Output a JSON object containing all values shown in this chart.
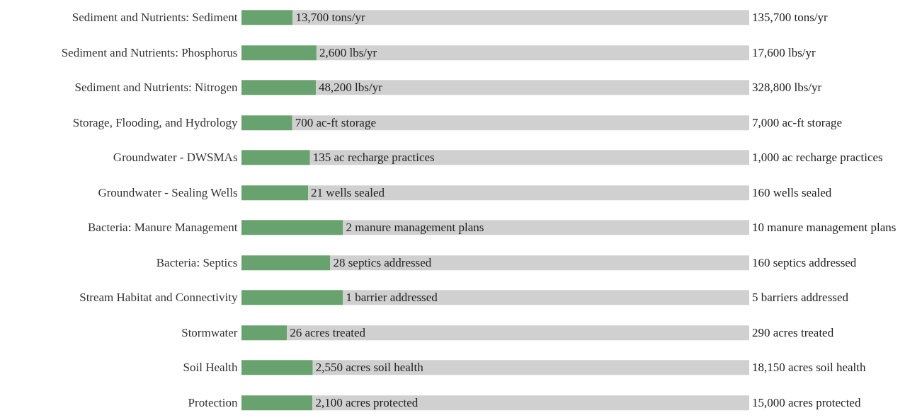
{
  "chart_data": [
    {
      "type": "bar",
      "orientation": "horizontal",
      "stacked": true,
      "tick_labels": "y",
      "categories": [
        "Sediment and Nutrients: Sediment"
      ],
      "xlim": [
        0,
        135700
      ],
      "totals": [
        "135,700 tons/yr"
      ],
      "series": [
        {
          "color": "#68a36f",
          "values": [
            13700
          ],
          "value_labels": [
            "13,700 tons/yr"
          ]
        },
        {
          "color": "#d0d0d0",
          "values": [
            122000
          ],
          "value_labels": [
            null
          ]
        }
      ]
    },
    {
      "type": "bar",
      "orientation": "horizontal",
      "stacked": true,
      "tick_labels": "y",
      "categories": [
        "Sediment and Nutrients: Phosphorus"
      ],
      "xlim": [
        0,
        17600
      ],
      "totals": [
        "17,600 lbs/yr"
      ],
      "series": [
        {
          "color": "#68a36f",
          "values": [
            2600
          ],
          "value_labels": [
            "2,600 lbs/yr"
          ]
        },
        {
          "color": "#d0d0d0",
          "values": [
            15000
          ],
          "value_labels": [
            null
          ]
        }
      ]
    },
    {
      "type": "bar",
      "orientation": "horizontal",
      "stacked": true,
      "tick_labels": "y",
      "categories": [
        "Sediment and Nutrients: Nitrogen"
      ],
      "xlim": [
        0,
        328800
      ],
      "totals": [
        "328,800 lbs/yr"
      ],
      "series": [
        {
          "color": "#68a36f",
          "values": [
            48200
          ],
          "value_labels": [
            "48,200 lbs/yr"
          ]
        },
        {
          "color": "#d0d0d0",
          "values": [
            280600
          ],
          "value_labels": [
            null
          ]
        }
      ]
    },
    {
      "type": "bar",
      "orientation": "horizontal",
      "stacked": true,
      "tick_labels": "y",
      "categories": [
        "Storage, Flooding, and Hydrology"
      ],
      "xlim": [
        0,
        7000
      ],
      "totals": [
        "7,000 ac-ft storage"
      ],
      "series": [
        {
          "color": "#68a36f",
          "values": [
            700
          ],
          "value_labels": [
            "700 ac-ft storage"
          ]
        },
        {
          "color": "#d0d0d0",
          "values": [
            6300
          ],
          "value_labels": [
            null
          ]
        }
      ]
    },
    {
      "type": "bar",
      "orientation": "horizontal",
      "stacked": true,
      "tick_labels": "y",
      "categories": [
        "Groundwater - DWSMAs"
      ],
      "xlim": [
        0,
        1000
      ],
      "totals": [
        "1,000 ac recharge practices"
      ],
      "series": [
        {
          "color": "#68a36f",
          "values": [
            135
          ],
          "value_labels": [
            "135 ac recharge practices"
          ]
        },
        {
          "color": "#d0d0d0",
          "values": [
            865
          ],
          "value_labels": [
            null
          ]
        }
      ]
    },
    {
      "type": "bar",
      "orientation": "horizontal",
      "stacked": true,
      "tick_labels": "y",
      "categories": [
        "Groundwater - Sealing Wells"
      ],
      "xlim": [
        0,
        160
      ],
      "totals": [
        "160 wells sealed"
      ],
      "series": [
        {
          "color": "#68a36f",
          "values": [
            21
          ],
          "value_labels": [
            "21 wells sealed"
          ]
        },
        {
          "color": "#d0d0d0",
          "values": [
            139
          ],
          "value_labels": [
            null
          ]
        }
      ]
    },
    {
      "type": "bar",
      "orientation": "horizontal",
      "stacked": true,
      "tick_labels": "y",
      "categories": [
        "Bacteria: Manure Management"
      ],
      "xlim": [
        0,
        10
      ],
      "totals": [
        "10 manure management plans"
      ],
      "series": [
        {
          "color": "#68a36f",
          "values": [
            2
          ],
          "value_labels": [
            "2 manure management plans"
          ]
        },
        {
          "color": "#d0d0d0",
          "values": [
            8
          ],
          "value_labels": [
            null
          ]
        }
      ]
    },
    {
      "type": "bar",
      "orientation": "horizontal",
      "stacked": true,
      "tick_labels": "y",
      "categories": [
        "Bacteria: Septics"
      ],
      "xlim": [
        0,
        160
      ],
      "totals": [
        "160 septics addressed"
      ],
      "series": [
        {
          "color": "#68a36f",
          "values": [
            28
          ],
          "value_labels": [
            "28 septics addressed"
          ]
        },
        {
          "color": "#d0d0d0",
          "values": [
            132
          ],
          "value_labels": [
            null
          ]
        }
      ]
    },
    {
      "type": "bar",
      "orientation": "horizontal",
      "stacked": true,
      "tick_labels": "y",
      "categories": [
        "Stream Habitat and Connectivity"
      ],
      "xlim": [
        0,
        5
      ],
      "totals": [
        "5 barriers addressed"
      ],
      "series": [
        {
          "color": "#68a36f",
          "values": [
            1
          ],
          "value_labels": [
            "1 barrier addressed"
          ]
        },
        {
          "color": "#d0d0d0",
          "values": [
            4
          ],
          "value_labels": [
            null
          ]
        }
      ]
    },
    {
      "type": "bar",
      "orientation": "horizontal",
      "stacked": true,
      "tick_labels": "y",
      "categories": [
        "Stormwater"
      ],
      "xlim": [
        0,
        290
      ],
      "totals": [
        "290 acres treated"
      ],
      "series": [
        {
          "color": "#68a36f",
          "values": [
            26
          ],
          "value_labels": [
            "26 acres treated"
          ]
        },
        {
          "color": "#d0d0d0",
          "values": [
            264
          ],
          "value_labels": [
            null
          ]
        }
      ]
    },
    {
      "type": "bar",
      "orientation": "horizontal",
      "stacked": true,
      "tick_labels": "y",
      "categories": [
        "Soil Health"
      ],
      "xlim": [
        0,
        18150
      ],
      "totals": [
        "18,150 acres soil health"
      ],
      "series": [
        {
          "color": "#68a36f",
          "values": [
            2550
          ],
          "value_labels": [
            "2,550 acres soil health"
          ]
        },
        {
          "color": "#d0d0d0",
          "values": [
            15600
          ],
          "value_labels": [
            null
          ]
        }
      ]
    },
    {
      "type": "bar",
      "orientation": "horizontal",
      "stacked": true,
      "tick_labels": "y",
      "categories": [
        "Protection"
      ],
      "xlim": [
        0,
        15000
      ],
      "totals": [
        "15,000 acres protected"
      ],
      "series": [
        {
          "color": "#68a36f",
          "values": [
            2100
          ],
          "value_labels": [
            "2,100 acres protected"
          ]
        },
        {
          "color": "#d0d0d0",
          "values": [
            12900
          ],
          "value_labels": [
            null
          ]
        }
      ]
    }
  ]
}
